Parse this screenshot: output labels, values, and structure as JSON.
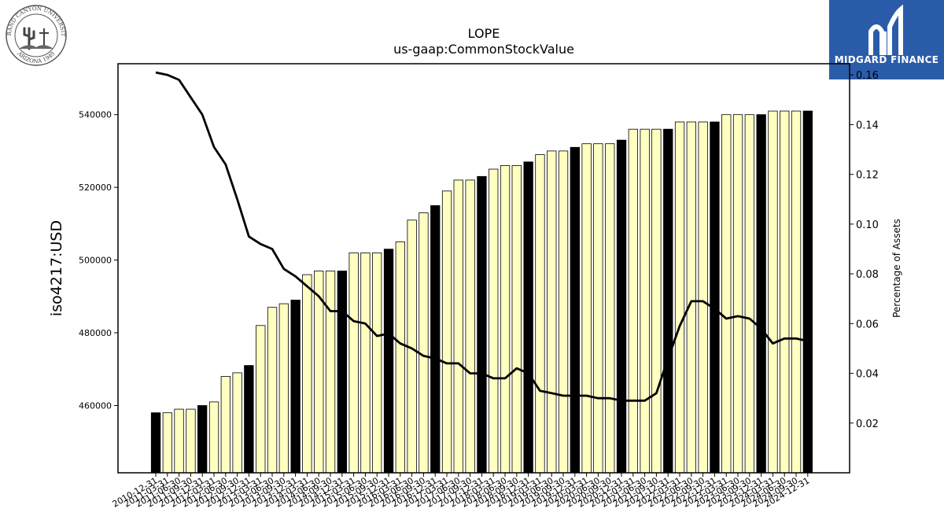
{
  "logos": {
    "university": {
      "name": "Grand Canyon University seal",
      "text_top": "GRAND CANYON UNIVERSITY",
      "text_bottom": "ARIZONA 1949",
      "icon": "cactus-cross-seal-icon"
    },
    "brand": {
      "name": "MIDGARD FINANCE",
      "icon": "midgard-mark-icon",
      "color": "#2a5caa"
    }
  },
  "chart_data": {
    "type": "bar",
    "title": "LOPE",
    "subtitle": "us-gaap:CommonStockValue",
    "ylabel": "iso4217:USD",
    "ylabel_right": "Percentage of Assets",
    "ylim": [
      441500,
      554000
    ],
    "ylim_right": [
      0.0,
      0.1645
    ],
    "yticks": [
      "460000",
      "480000",
      "500000",
      "520000",
      "540000"
    ],
    "yticks_right": [
      "0.02",
      "0.04",
      "0.06",
      "0.08",
      "0.10",
      "0.12",
      "0.14",
      "0.16"
    ],
    "grid": false,
    "colors": {
      "highlight_bar": "#000000",
      "normal_bar": "#ffffc0",
      "line": "#000000"
    },
    "categories": [
      "2010-12-31",
      "2011-03-31",
      "2011-06-30",
      "2011-09-30",
      "2011-12-31",
      "2012-03-31",
      "2012-06-30",
      "2012-09-30",
      "2012-12-31",
      "2013-03-31",
      "2013-06-30",
      "2013-09-30",
      "2013-12-31",
      "2014-03-31",
      "2014-06-30",
      "2014-09-30",
      "2014-12-31",
      "2015-03-31",
      "2015-06-30",
      "2015-09-30",
      "2015-12-31",
      "2016-03-31",
      "2016-06-30",
      "2016-09-30",
      "2016-12-31",
      "2017-03-31",
      "2017-06-30",
      "2017-09-30",
      "2017-12-31",
      "2018-03-31",
      "2018-06-30",
      "2018-09-30",
      "2018-12-31",
      "2019-03-31",
      "2019-06-30",
      "2019-09-30",
      "2019-12-31",
      "2020-03-31",
      "2020-06-30",
      "2020-09-30",
      "2020-12-31",
      "2021-03-31",
      "2021-06-30",
      "2021-09-30",
      "2021-12-31",
      "2022-03-31",
      "2022-06-30",
      "2022-09-30",
      "2022-12-31",
      "2023-03-31",
      "2023-06-30",
      "2023-09-30",
      "2023-12-31",
      "2024-03-31",
      "2024-06-30",
      "2024-09-30",
      "2024-12-31"
    ],
    "series": [
      {
        "type": "bar",
        "values": [
          458000,
          458000,
          459000,
          459000,
          460000,
          461000,
          468000,
          469000,
          471000,
          482000,
          487000,
          488000,
          489000,
          496000,
          497000,
          497000,
          497000,
          502000,
          502000,
          502000,
          503000,
          505000,
          511000,
          513000,
          515000,
          519000,
          522000,
          522000,
          523000,
          525000,
          526000,
          526000,
          527000,
          529000,
          530000,
          530000,
          531000,
          532000,
          532000,
          532000,
          533000,
          536000,
          536000,
          536000,
          536000,
          538000,
          538000,
          538000,
          538000,
          540000,
          540000,
          540000,
          540000,
          541000,
          541000,
          541000,
          541000
        ],
        "highlighted": [
          true,
          false,
          false,
          false,
          true,
          false,
          false,
          false,
          true,
          false,
          false,
          false,
          true,
          false,
          false,
          false,
          true,
          false,
          false,
          false,
          true,
          false,
          false,
          false,
          true,
          false,
          false,
          false,
          true,
          false,
          false,
          false,
          true,
          false,
          false,
          false,
          true,
          false,
          false,
          false,
          true,
          false,
          false,
          false,
          true,
          false,
          false,
          false,
          true,
          false,
          false,
          false,
          true,
          false,
          false,
          false,
          true
        ]
      },
      {
        "type": "line",
        "axis": "right",
        "values": [
          0.161,
          0.16,
          0.158,
          0.151,
          0.144,
          0.131,
          0.124,
          0.11,
          0.095,
          0.092,
          0.09,
          0.082,
          0.079,
          0.075,
          0.071,
          0.065,
          0.065,
          0.061,
          0.06,
          0.055,
          0.056,
          0.052,
          0.05,
          0.047,
          0.046,
          0.044,
          0.044,
          0.04,
          0.04,
          0.038,
          0.038,
          0.042,
          0.04,
          0.033,
          0.032,
          0.031,
          0.031,
          0.031,
          0.03,
          0.03,
          0.029,
          0.029,
          0.029,
          0.032,
          0.046,
          0.059,
          0.069,
          0.069,
          0.066,
          0.062,
          0.063,
          0.062,
          0.058,
          0.052,
          0.054,
          0.054,
          0.053
        ]
      }
    ]
  }
}
